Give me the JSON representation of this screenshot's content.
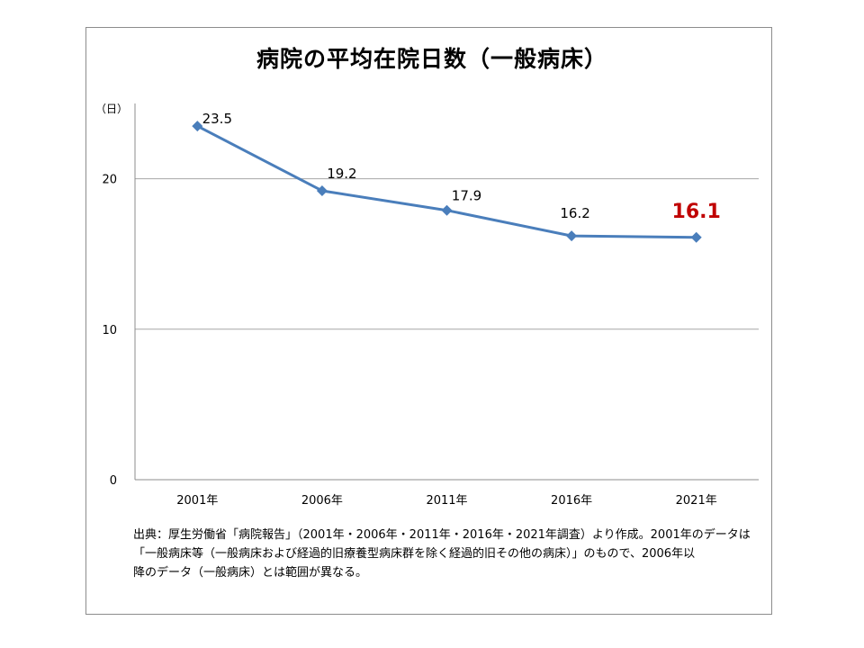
{
  "chart_data": {
    "type": "line",
    "title": "病院の平均在院日数（一般病床）",
    "ylabel": "（日）",
    "xlabel": "",
    "ylim": [
      0,
      25
    ],
    "yticks": [
      0,
      10,
      20
    ],
    "grid": true,
    "categories": [
      "2001年",
      "2006年",
      "2011年",
      "2016年",
      "2021年"
    ],
    "series": [
      {
        "values": [
          23.5,
          19.2,
          17.9,
          16.2,
          16.1
        ]
      }
    ],
    "data_labels": [
      "23.5",
      "19.2",
      "17.9",
      "16.2",
      "16.1"
    ],
    "highlight_index": 4,
    "colors": {
      "line": "#4a7ebb",
      "highlight_label": "#c00000",
      "grid": "#a6a6a6"
    }
  },
  "note": {
    "lines": [
      "出典：厚生労働省「病院報告」（2001年・2006年・2011年・2016年・2021年調査）より作成。2001年のデータは",
      "「一般病床等（一般病床および経過的旧療養型病床群を除く経過的旧その他の病床）」のもので、2006年以",
      "降のデータ（一般病床）とは範囲が異なる。"
    ]
  }
}
